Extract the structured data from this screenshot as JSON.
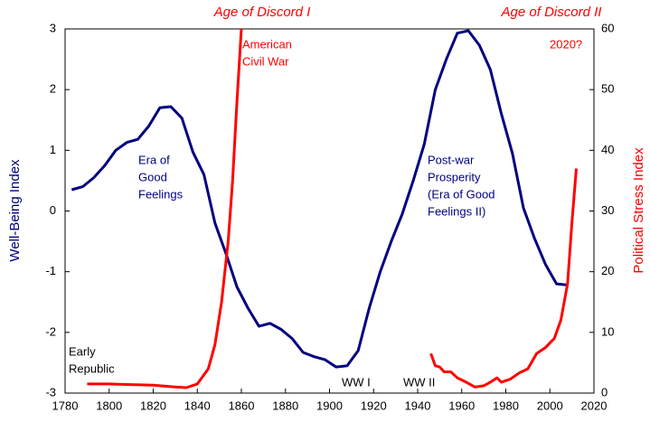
{
  "chart_data": {
    "type": "line",
    "ylabel": "Well-Being Index",
    "y2label": "Political Stress Index",
    "xlim": [
      1780,
      2020
    ],
    "xticks": [
      1780,
      1800,
      1820,
      1840,
      1860,
      1880,
      1900,
      1920,
      1940,
      1960,
      1980,
      2000,
      2020
    ],
    "ylim": [
      -3,
      3
    ],
    "yticks": [
      -3,
      -2,
      -1,
      0,
      1,
      2,
      3
    ],
    "y2lim": [
      0,
      60
    ],
    "y2ticks": [
      0,
      10,
      20,
      30,
      40,
      50,
      60
    ],
    "grid": false,
    "series": [
      {
        "name": "Well-Being Index",
        "color": "#000080",
        "x": [
          1783,
          1788,
          1793,
          1798,
          1803,
          1808,
          1813,
          1818,
          1823,
          1828,
          1833,
          1838,
          1843,
          1848,
          1853,
          1858,
          1863,
          1868,
          1873,
          1878,
          1883,
          1888,
          1893,
          1898,
          1903,
          1908,
          1913,
          1918,
          1923,
          1928,
          1933,
          1938,
          1943,
          1948,
          1953,
          1958,
          1963,
          1968,
          1973,
          1978,
          1983,
          1988,
          1993,
          1998,
          2003,
          2008
        ],
        "values": [
          0.35,
          0.4,
          0.55,
          0.75,
          1.0,
          1.13,
          1.18,
          1.4,
          1.7,
          1.72,
          1.53,
          0.97,
          0.6,
          -0.2,
          -0.7,
          -1.25,
          -1.6,
          -1.9,
          -1.85,
          -1.95,
          -2.1,
          -2.33,
          -2.4,
          -2.45,
          -2.57,
          -2.55,
          -2.3,
          -1.6,
          -1.0,
          -0.5,
          -0.05,
          0.5,
          1.1,
          2.0,
          2.5,
          2.93,
          2.97,
          2.73,
          2.33,
          1.6,
          0.95,
          0.05,
          -0.45,
          -0.88,
          -1.2,
          -1.22
        ]
      },
      {
        "name": "Political Stress Index",
        "color": "#ff0000",
        "axis": "y2",
        "x": [
          1790,
          1800,
          1810,
          1820,
          1830,
          1835,
          1840,
          1845,
          1848,
          1851,
          1854,
          1856,
          1858,
          1860,
          1900,
          1946,
          1948,
          1950,
          1952,
          1955,
          1958,
          1962,
          1966,
          1970,
          1973,
          1976,
          1978,
          1982,
          1986,
          1990,
          1994,
          1998,
          2002,
          2005,
          2008,
          2010,
          2012
        ],
        "values": [
          1.5,
          1.5,
          1.4,
          1.3,
          1.0,
          0.9,
          1.5,
          4,
          8,
          15,
          25,
          35,
          48,
          60,
          null,
          6.5,
          4.5,
          4.3,
          3.5,
          3.5,
          2.5,
          1.8,
          1.0,
          1.2,
          1.8,
          2.5,
          1.8,
          2.3,
          3.3,
          4,
          6.5,
          7.5,
          9,
          12,
          18,
          28,
          37
        ]
      }
    ],
    "annotations": [
      {
        "lines": [
          "Age of Discord I"
        ],
        "color": "#ff0000",
        "italic": true
      },
      {
        "lines": [
          "Age of Discord II"
        ],
        "color": "#ff0000",
        "italic": true
      },
      {
        "lines": [
          "American",
          "Civil War"
        ],
        "color": "#ff0000"
      },
      {
        "lines": [
          "2020?"
        ],
        "color": "#ff0000"
      },
      {
        "lines": [
          "Era of",
          "Good",
          "Feelings"
        ],
        "color": "#000080"
      },
      {
        "lines": [
          "Post-war",
          "Prosperity",
          "(Era of Good",
          "Feelings II)"
        ],
        "color": "#000080"
      },
      {
        "lines": [
          "Early",
          "Republic"
        ],
        "color": "#000000"
      },
      {
        "lines": [
          "WW I"
        ],
        "color": "#000000"
      },
      {
        "lines": [
          "WW II"
        ],
        "color": "#000000"
      }
    ]
  }
}
